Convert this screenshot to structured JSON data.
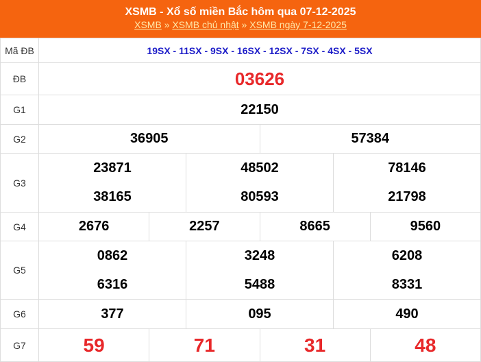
{
  "header": {
    "title": "XSMB - Xổ số miền Bắc hôm qua 07-12-2025",
    "breadcrumb": [
      "XSMB",
      "XSMB chủ nhật",
      "XSMB ngày 7-12-2025"
    ],
    "separator": "»"
  },
  "labels": {
    "ma": "Mã ĐB",
    "db": "ĐB",
    "g1": "G1",
    "g2": "G2",
    "g3": "G3",
    "g4": "G4",
    "g5": "G5",
    "g6": "G6",
    "g7": "G7"
  },
  "ma_db": "19SX - 11SX - 9SX - 16SX - 12SX - 7SX - 4SX - 5SX",
  "db": "03626",
  "g1": [
    "22150"
  ],
  "g2": [
    "36905",
    "57384"
  ],
  "g3": [
    "23871",
    "48502",
    "78146",
    "38165",
    "80593",
    "21798"
  ],
  "g4": [
    "2676",
    "2257",
    "8665",
    "9560"
  ],
  "g5": [
    "0862",
    "3248",
    "6208",
    "6316",
    "5488",
    "8331"
  ],
  "g6": [
    "377",
    "095",
    "490"
  ],
  "g7": [
    "59",
    "71",
    "31",
    "48"
  ],
  "colors": {
    "header": "#f5640f",
    "special": "#e8282a",
    "code": "#1c1cc8"
  }
}
